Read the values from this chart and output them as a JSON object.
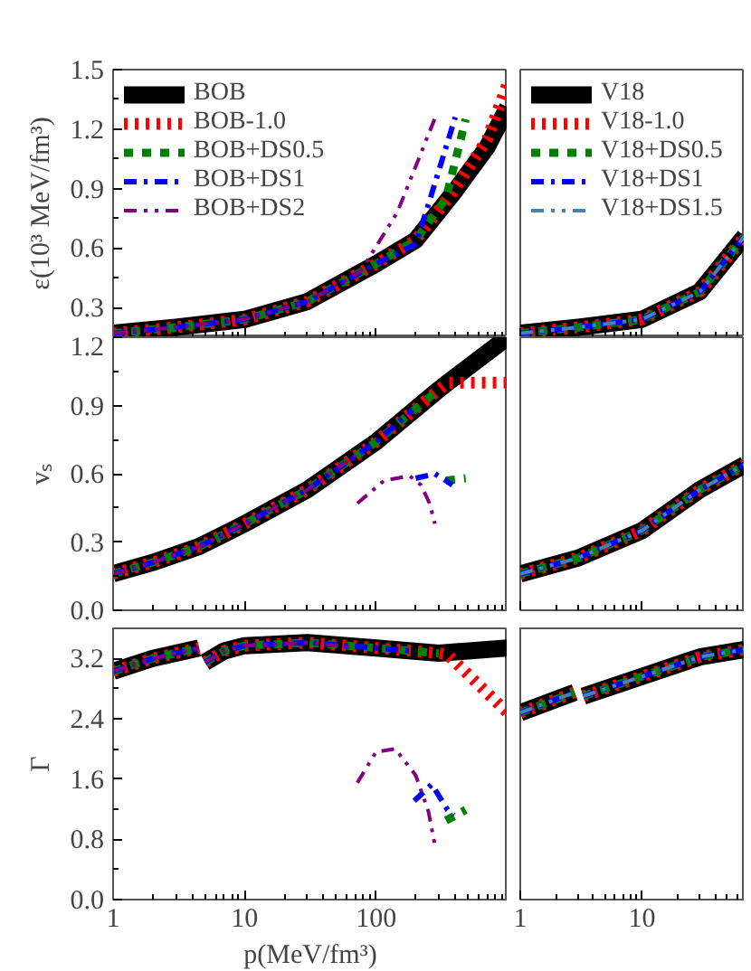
{
  "chart_data": [
    {
      "type": "line",
      "ylabel": "ε(10³ MeV/fm³)",
      "log": "x",
      "xlim": [
        1,
        1000
      ],
      "xticks": [
        1,
        10,
        100
      ],
      "ylim": [
        0.15,
        1.5
      ],
      "yticks": [
        0.3,
        0.6,
        0.9,
        1.2,
        1.5
      ],
      "tick_labels": "y",
      "legend": "top left",
      "series": [
        {
          "name": "BOB",
          "color": "#000000",
          "line_style": "solid",
          "x": [
            1,
            3,
            10,
            30,
            100,
            200,
            400,
            700,
            1000
          ],
          "values": [
            0.17,
            0.2,
            0.24,
            0.33,
            0.52,
            0.64,
            0.89,
            1.11,
            1.31
          ]
        },
        {
          "name": "BOB-1.0",
          "color": "#ff0000",
          "line_style": "dotted",
          "x": [
            1,
            3,
            10,
            30,
            100,
            200,
            400,
            700,
            1000
          ],
          "values": [
            0.17,
            0.2,
            0.24,
            0.33,
            0.52,
            0.64,
            0.9,
            1.15,
            1.43
          ]
        },
        {
          "name": "BOB+DS0.5",
          "color": "#008000",
          "line_style": "dashed",
          "x": [
            1,
            3,
            10,
            30,
            100,
            200,
            340,
            480
          ],
          "values": [
            0.17,
            0.2,
            0.24,
            0.33,
            0.52,
            0.64,
            0.85,
            1.25
          ]
        },
        {
          "name": "BOB+DS1",
          "color": "#0000ff",
          "line_style": "dashdot",
          "x": [
            1,
            3,
            10,
            30,
            100,
            200,
            250,
            400
          ],
          "values": [
            0.17,
            0.2,
            0.24,
            0.33,
            0.52,
            0.62,
            0.82,
            1.26
          ]
        },
        {
          "name": "BOB+DS2",
          "color": "#800080",
          "line_style": "dashdotdot",
          "x": [
            1,
            3,
            10,
            30,
            76,
            145,
            290
          ],
          "values": [
            0.17,
            0.2,
            0.24,
            0.33,
            0.48,
            0.78,
            1.28
          ]
        }
      ]
    },
    {
      "type": "line",
      "log": "x",
      "xlim": [
        1,
        70
      ],
      "xticks": [
        1,
        10
      ],
      "ylim": [
        0.15,
        1.5
      ],
      "tick_labels": false,
      "legend": "top left",
      "series": [
        {
          "name": "V18",
          "color": "#000000",
          "line_style": "solid",
          "x": [
            1,
            3,
            10,
            30,
            70
          ],
          "values": [
            0.17,
            0.2,
            0.24,
            0.38,
            0.66
          ]
        },
        {
          "name": "V18-1.0",
          "color": "#ff0000",
          "line_style": "dotted",
          "x": [
            1,
            3,
            10,
            30,
            70
          ],
          "values": [
            0.17,
            0.2,
            0.24,
            0.38,
            0.66
          ]
        },
        {
          "name": "V18+DS0.5",
          "color": "#008000",
          "line_style": "dashed",
          "x": [
            1,
            3,
            10,
            30,
            70
          ],
          "values": [
            0.17,
            0.2,
            0.24,
            0.38,
            0.66
          ]
        },
        {
          "name": "V18+DS1",
          "color": "#0000ff",
          "line_style": "dashdot",
          "x": [
            1,
            3,
            10,
            30,
            70
          ],
          "values": [
            0.17,
            0.2,
            0.24,
            0.38,
            0.66
          ]
        },
        {
          "name": "V18+DS1.5",
          "color": "#4682b4",
          "line_style": "dashdotdot",
          "x": [
            1,
            3,
            10,
            30,
            70
          ],
          "values": [
            0.17,
            0.2,
            0.24,
            0.38,
            0.66
          ]
        }
      ]
    },
    {
      "type": "line",
      "ylabel": "vₛ",
      "log": "x",
      "xlim": [
        1,
        1000
      ],
      "xticks": [
        1,
        10,
        100
      ],
      "ylim": [
        0,
        1.2
      ],
      "yticks": [
        {
          "value": 0,
          "label": "0.0"
        },
        0.3,
        0.6,
        0.9,
        1.2
      ],
      "tick_labels": "y",
      "series": [
        {
          "color": "#000000",
          "line_style": "solid",
          "x": [
            1,
            2,
            4.5,
            10,
            30,
            100,
            300,
            350,
            1000
          ],
          "values": [
            0.16,
            0.21,
            0.28,
            0.38,
            0.53,
            0.74,
            0.97,
            1.0,
            1.2
          ]
        },
        {
          "color": "#ff0000",
          "line_style": "dotted",
          "x": [
            1,
            2,
            4.5,
            10,
            30,
            100,
            300,
            350,
            1000
          ],
          "values": [
            0.16,
            0.21,
            0.28,
            0.38,
            0.53,
            0.74,
            0.97,
            1.0,
            1.0
          ]
        },
        {
          "color": "#008000",
          "line_style": "dashed",
          "x": [
            1,
            2,
            4.5,
            10,
            30,
            100,
            300,
            310,
            340,
            480
          ],
          "values": [
            0.16,
            0.21,
            0.28,
            0.38,
            0.53,
            0.74,
            0.97,
            null,
            0.57,
            0.58
          ]
        },
        {
          "color": "#0000ff",
          "line_style": "dashdot",
          "x": [
            1,
            2,
            4.5,
            10,
            30,
            100,
            190,
            195,
            200,
            280,
            340,
            380
          ],
          "values": [
            0.16,
            0.21,
            0.28,
            0.38,
            0.53,
            0.74,
            0.88,
            null,
            0.58,
            0.6,
            0.57,
            0.55
          ]
        },
        {
          "color": "#800080",
          "line_style": "dashdotdot",
          "x": [
            1,
            2,
            4.5,
            10,
            30,
            70,
            71,
            72,
            115,
            180,
            220,
            255,
            280
          ],
          "values": [
            0.16,
            0.21,
            0.28,
            0.38,
            0.53,
            0.68,
            null,
            0.47,
            0.57,
            0.59,
            0.55,
            0.47,
            0.38
          ]
        }
      ]
    },
    {
      "type": "line",
      "log": "x",
      "xlim": [
        1,
        70
      ],
      "xticks": [
        1,
        10
      ],
      "ylim": [
        0,
        1.2
      ],
      "tick_labels": false,
      "series": [
        {
          "color": "#000000",
          "line_style": "solid",
          "x": [
            1,
            3,
            10,
            30,
            70
          ],
          "values": [
            0.16,
            0.23,
            0.35,
            0.53,
            0.64
          ]
        },
        {
          "color": "#ff0000",
          "line_style": "dotted",
          "x": [
            1,
            3,
            10,
            30,
            70
          ],
          "values": [
            0.16,
            0.23,
            0.35,
            0.53,
            0.64
          ]
        },
        {
          "color": "#008000",
          "line_style": "dashed",
          "x": [
            1,
            3,
            10,
            30,
            70
          ],
          "values": [
            0.16,
            0.23,
            0.35,
            0.53,
            0.64
          ]
        },
        {
          "color": "#0000ff",
          "line_style": "dashdot",
          "x": [
            1,
            3,
            10,
            30,
            70
          ],
          "values": [
            0.16,
            0.23,
            0.35,
            0.53,
            0.64
          ]
        },
        {
          "color": "#4682b4",
          "line_style": "dashdotdot",
          "x": [
            1,
            3,
            10,
            30,
            70
          ],
          "values": [
            0.16,
            0.23,
            0.35,
            0.53,
            0.64
          ]
        }
      ]
    },
    {
      "type": "line",
      "ylabel": "Γ",
      "xlabel": "p(MeV/fm³)",
      "log": "x",
      "xlim": [
        1,
        1000
      ],
      "xticks": [
        1,
        10,
        100
      ],
      "ylim": [
        0,
        3.6
      ],
      "yticks": [
        {
          "value": 0,
          "label": "0.0"
        },
        0.8,
        1.6,
        2.4,
        3.2
      ],
      "series": [
        {
          "color": "#000000",
          "line_style": "solid",
          "x": [
            1,
            2,
            4.5,
            4.8,
            5,
            7,
            10,
            30,
            100,
            300,
            1000
          ],
          "values": [
            3.03,
            3.2,
            3.34,
            null,
            3.15,
            3.3,
            3.37,
            3.41,
            3.34,
            3.27,
            3.34
          ]
        },
        {
          "color": "#ff0000",
          "line_style": "dotted",
          "x": [
            1,
            2,
            4.5,
            4.8,
            5,
            7,
            10,
            30,
            100,
            300,
            350,
            1000
          ],
          "values": [
            3.03,
            3.2,
            3.34,
            null,
            3.15,
            3.3,
            3.37,
            3.41,
            3.34,
            3.27,
            3.25,
            2.48
          ]
        },
        {
          "color": "#008000",
          "line_style": "dashed",
          "x": [
            1,
            2,
            4.5,
            4.8,
            5,
            7,
            10,
            30,
            100,
            300,
            320,
            340,
            480
          ],
          "values": [
            3.03,
            3.2,
            3.34,
            null,
            3.15,
            3.3,
            3.37,
            3.41,
            3.34,
            3.27,
            null,
            1.05,
            1.19
          ]
        },
        {
          "color": "#0000ff",
          "line_style": "dashdot",
          "x": [
            1,
            2,
            4.5,
            4.8,
            5,
            7,
            10,
            30,
            100,
            190,
            192,
            195,
            265,
            350,
            390
          ],
          "values": [
            3.03,
            3.2,
            3.34,
            null,
            3.15,
            3.3,
            3.37,
            3.41,
            3.34,
            3.3,
            null,
            1.31,
            1.53,
            1.19,
            1.12
          ]
        },
        {
          "color": "#800080",
          "line_style": "dashdotdot",
          "x": [
            1,
            2,
            4.5,
            4.8,
            5,
            7,
            10,
            30,
            70,
            71,
            72,
            100,
            140,
            200,
            250,
            280
          ],
          "values": [
            3.03,
            3.2,
            3.34,
            null,
            3.15,
            3.3,
            3.37,
            3.41,
            3.34,
            null,
            1.55,
            1.96,
            2.0,
            1.65,
            1.17,
            0.72
          ]
        }
      ]
    },
    {
      "type": "line",
      "log": "x",
      "xlim": [
        1,
        70
      ],
      "xticks": [
        1,
        10
      ],
      "ylim": [
        0,
        3.6
      ],
      "tick_labels": "x",
      "series": [
        {
          "color": "#000000",
          "line_style": "solid",
          "x": [
            1,
            2.8,
            3.0,
            3.3,
            10,
            30,
            70
          ],
          "values": [
            2.48,
            2.75,
            null,
            2.7,
            2.96,
            3.22,
            3.32
          ]
        },
        {
          "color": "#ff0000",
          "line_style": "dotted",
          "x": [
            1,
            2.8,
            3.0,
            3.3,
            10,
            30,
            70
          ],
          "values": [
            2.48,
            2.75,
            null,
            2.7,
            2.96,
            3.22,
            3.32
          ]
        },
        {
          "color": "#008000",
          "line_style": "dashed",
          "x": [
            1,
            2.8,
            3.0,
            3.3,
            10,
            30,
            70
          ],
          "values": [
            2.48,
            2.75,
            null,
            2.7,
            2.96,
            3.22,
            3.32
          ]
        },
        {
          "color": "#0000ff",
          "line_style": "dashdot",
          "x": [
            1,
            2.8,
            3.0,
            3.3,
            10,
            30,
            70
          ],
          "values": [
            2.48,
            2.75,
            null,
            2.7,
            2.96,
            3.22,
            3.32
          ]
        },
        {
          "color": "#4682b4",
          "line_style": "dashdotdot",
          "x": [
            1,
            2.8,
            3.0,
            3.3,
            10,
            30,
            70
          ],
          "values": [
            2.48,
            2.75,
            null,
            2.7,
            2.96,
            3.22,
            3.32
          ]
        }
      ]
    }
  ]
}
